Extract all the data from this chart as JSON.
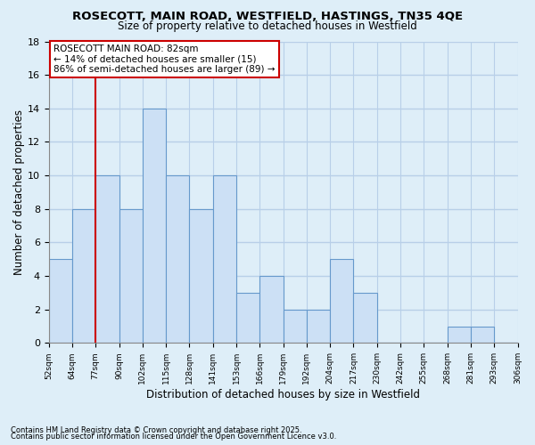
{
  "title": "ROSECOTT, MAIN ROAD, WESTFIELD, HASTINGS, TN35 4QE",
  "subtitle": "Size of property relative to detached houses in Westfield",
  "xlabel": "Distribution of detached houses by size in Westfield",
  "ylabel": "Number of detached properties",
  "bin_labels": [
    "52sqm",
    "64sqm",
    "77sqm",
    "90sqm",
    "102sqm",
    "115sqm",
    "128sqm",
    "141sqm",
    "153sqm",
    "166sqm",
    "179sqm",
    "192sqm",
    "204sqm",
    "217sqm",
    "230sqm",
    "242sqm",
    "255sqm",
    "268sqm",
    "281sqm",
    "293sqm",
    "306sqm"
  ],
  "bar_heights": [
    5,
    8,
    10,
    8,
    14,
    10,
    8,
    10,
    3,
    4,
    2,
    2,
    5,
    3,
    0,
    0,
    0,
    1,
    1,
    0
  ],
  "bar_color": "#cce0f5",
  "bar_edge_color": "#6699cc",
  "grid_color": "#b8cfe8",
  "bg_color": "#deeef8",
  "vline_x_idx": 2,
  "vline_color": "#cc0000",
  "annotation_title": "ROSECOTT MAIN ROAD: 82sqm",
  "annotation_line1": "← 14% of detached houses are smaller (15)",
  "annotation_line2": "86% of semi-detached houses are larger (89) →",
  "footnote1": "Contains HM Land Registry data © Crown copyright and database right 2025.",
  "footnote2": "Contains public sector information licensed under the Open Government Licence v3.0.",
  "ylim": [
    0,
    18
  ],
  "yticks": [
    0,
    2,
    4,
    6,
    8,
    10,
    12,
    14,
    16,
    18
  ]
}
